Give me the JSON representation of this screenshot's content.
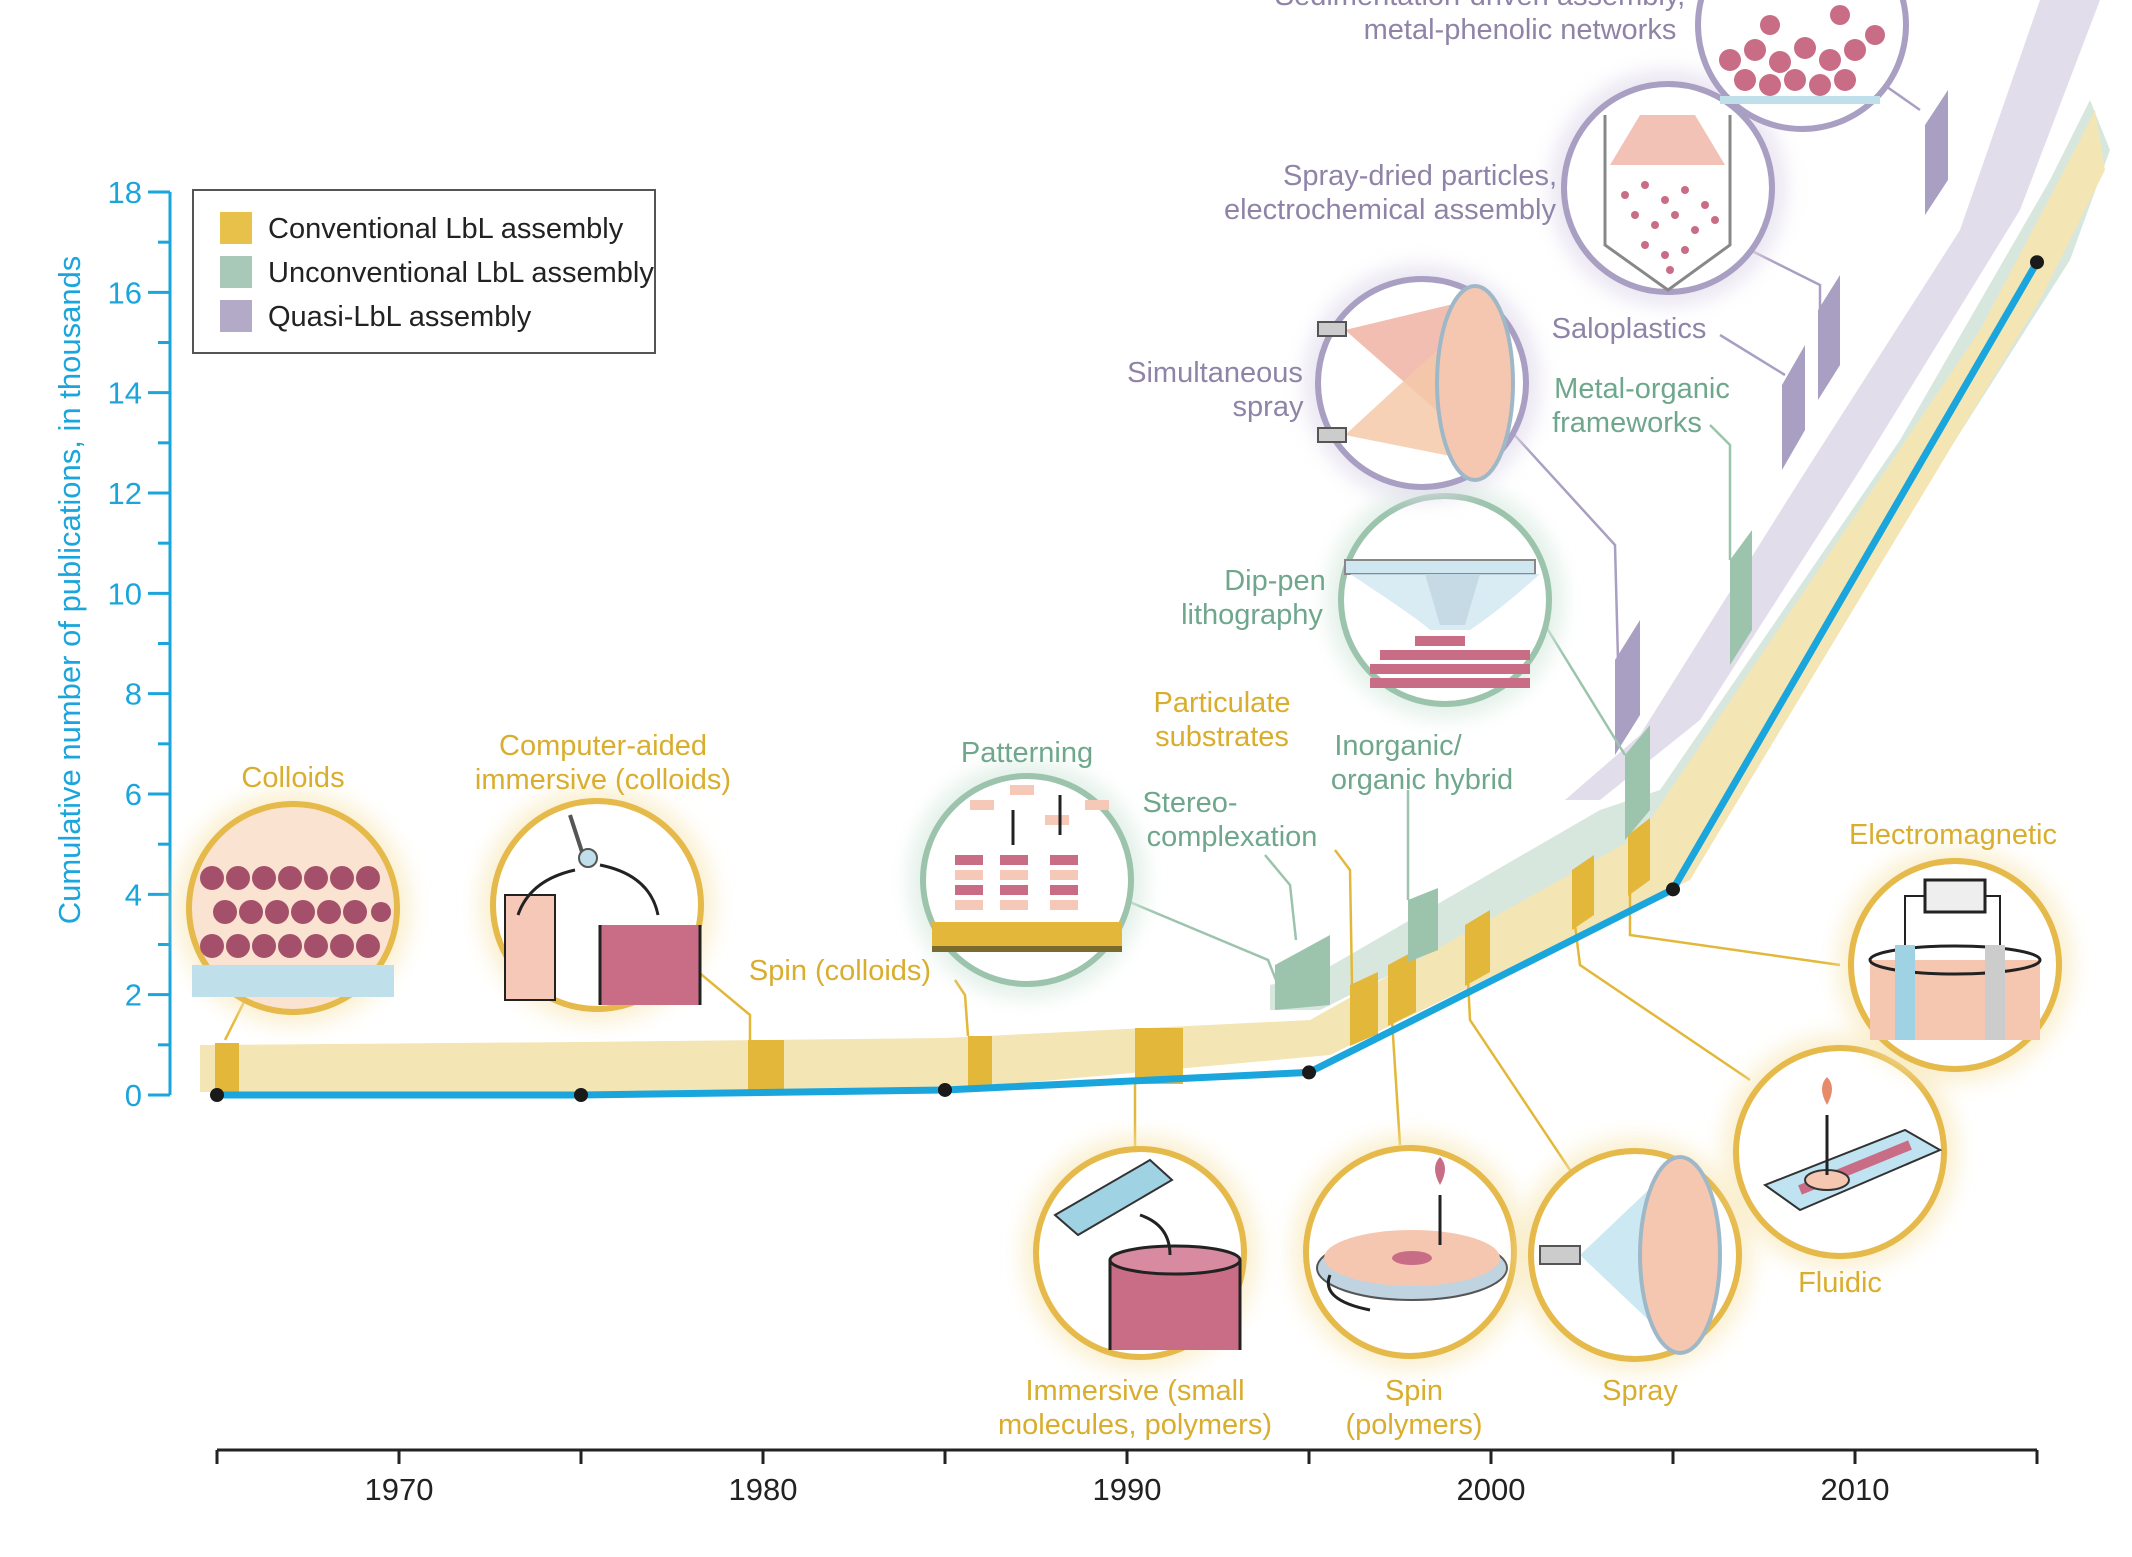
{
  "colors": {
    "conventional": "#e8c14b",
    "unconventional": "#a8c9b7",
    "quasi": "#b3aac8",
    "axis": "#1aa6dc",
    "line": "#1aa6dc",
    "circle_conv": "#e5b94a",
    "circle_unconv": "#9cc4ad",
    "circle_quasi": "#a99fc2"
  },
  "chart_data": {
    "type": "line",
    "ylabel": "Cumulative number of publications, in thousands",
    "xlabel": "",
    "title": "",
    "xlim": [
      1965,
      2015
    ],
    "ylim": [
      0,
      18
    ],
    "y_ticks": [
      "0",
      "2",
      "4",
      "6",
      "8",
      "10",
      "12",
      "14",
      "16",
      "18"
    ],
    "x_ticks": [
      "1970",
      "1980",
      "1990",
      "2000",
      "2010"
    ],
    "x_tick_values": [
      1970,
      1980,
      1990,
      2000,
      2010
    ],
    "y_tick_values": [
      0,
      2,
      4,
      6,
      8,
      10,
      12,
      14,
      16,
      18
    ],
    "series": [
      {
        "values": [
          [
            1965,
            0
          ],
          [
            1975,
            0
          ],
          [
            1985,
            0.1
          ],
          [
            1995,
            0.45
          ],
          [
            2005,
            4.1
          ],
          [
            2015,
            16.6
          ]
        ]
      }
    ],
    "legend": {
      "placement": "top-left",
      "items": [
        {
          "label": "Conventional LbL assembly",
          "color": "#e8c14b"
        },
        {
          "label": "Unconventional LbL assembly",
          "color": "#a8c9b7"
        },
        {
          "label": "Quasi-LbL assembly",
          "color": "#b3aac8"
        }
      ]
    },
    "annotations": {
      "conventional": [
        {
          "lines": [
            "Colloids"
          ],
          "year": 1965.2
        },
        {
          "lines": [
            "Computer-aided",
            "immersive (colloids)"
          ],
          "year": 1980.2
        },
        {
          "lines": [
            "Spin (colloids)"
          ],
          "year": 1986.2
        },
        {
          "lines": [
            "Immersive (small",
            "molecules, polymers)"
          ],
          "year": 1990.5
        },
        {
          "lines": [
            "Particulate",
            "substrates"
          ],
          "year": 1996.5
        },
        {
          "lines": [
            "Spin",
            "(polymers)"
          ],
          "year": 1998.0
        },
        {
          "lines": [
            "Spray"
          ],
          "year": 1999.7
        },
        {
          "lines": [
            "Fluidic"
          ],
          "year": 2002.8
        },
        {
          "lines": [
            "Electromagnetic"
          ],
          "year": 2004.1
        }
      ],
      "unconventional": [
        {
          "lines": [
            "Patterning"
          ],
          "year": 1994.5
        },
        {
          "lines": [
            "Stereo-",
            "complexation"
          ],
          "year": 1994.8
        },
        {
          "lines": [
            "Inorganic/",
            "organic hybrid"
          ],
          "year": 1998.5
        },
        {
          "lines": [
            "Dip-pen",
            "lithography"
          ],
          "year": 2003.8
        },
        {
          "lines": [
            "Metal-organic",
            "frameworks"
          ],
          "year": 2006.7
        }
      ],
      "quasi": [
        {
          "lines": [
            "Simultaneous",
            "spray"
          ],
          "year": 2003.5
        },
        {
          "lines": [
            "Saloplastics"
          ],
          "year": 2007.6
        },
        {
          "lines": [
            "Spray-dried particles,",
            "electrochemical assembly"
          ],
          "year": 2009.2
        },
        {
          "lines": [
            "Sedimentation-driven assembly,",
            "metal-phenolic networks"
          ],
          "year": 2010.3
        }
      ]
    }
  }
}
